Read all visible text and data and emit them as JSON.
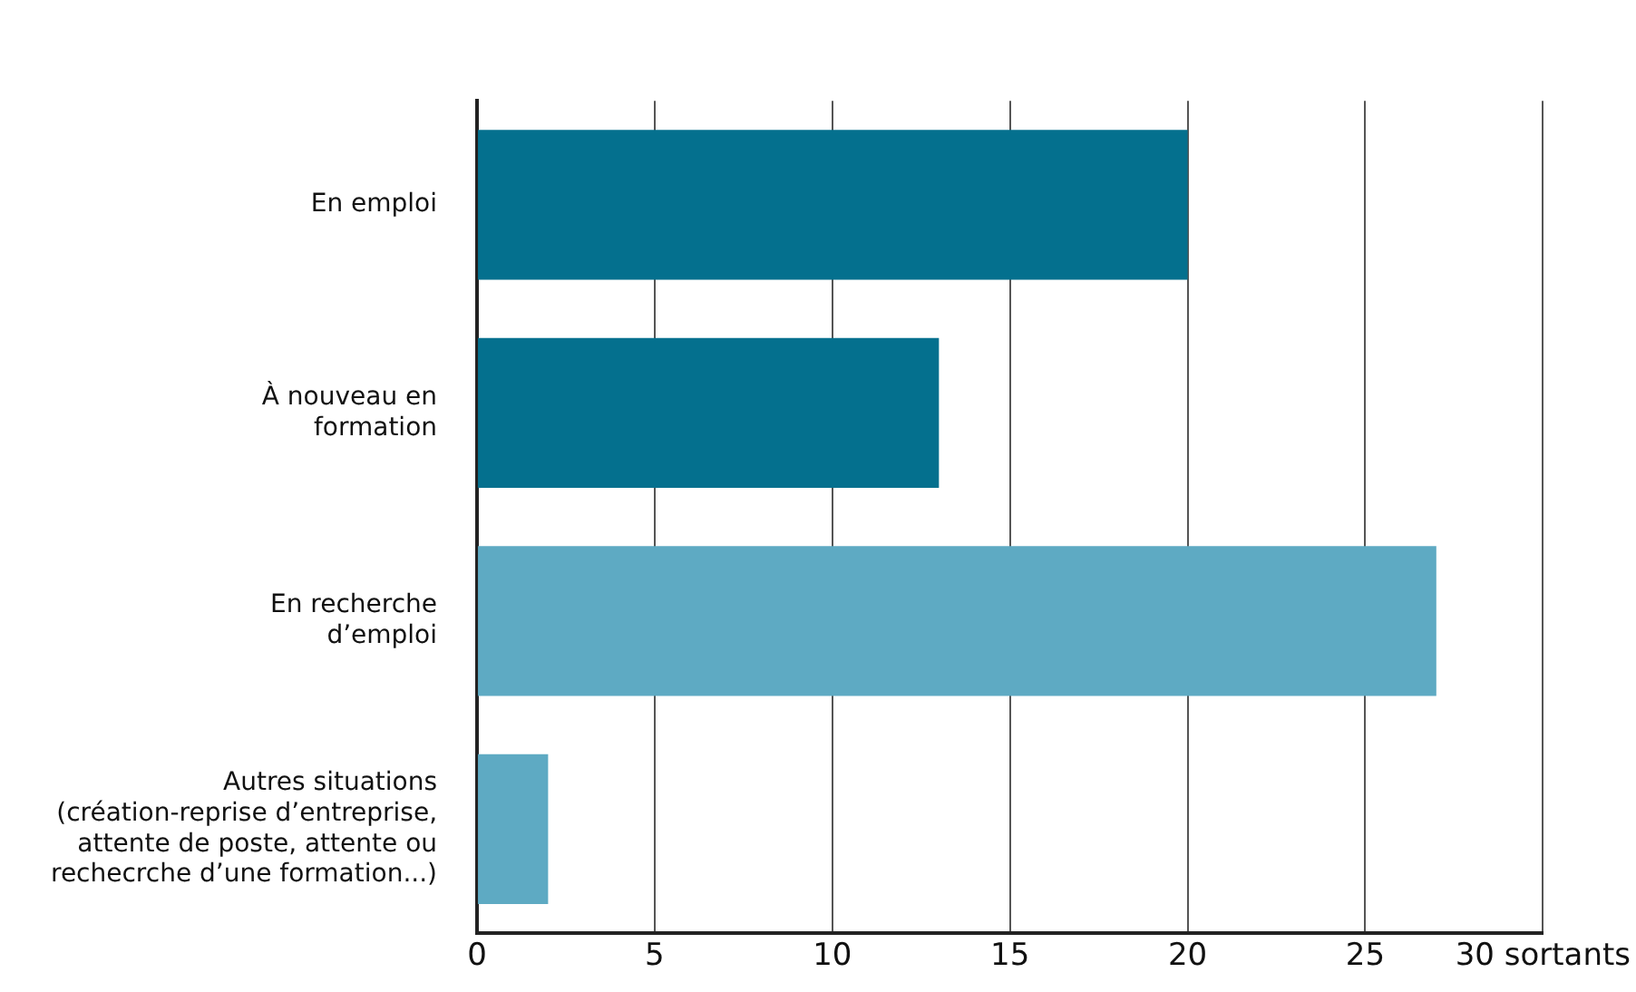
{
  "chart_data": {
    "type": "bar",
    "orientation": "horizontal",
    "categories": [
      "En emploi",
      "À nouveau en\nformation",
      "En recherche\nd’emploi",
      "Autres situations\n(création-reprise d’entreprise,\nattente de poste, attente ou\nrechecrche d’une formation...)"
    ],
    "values": [
      20,
      13,
      27,
      2
    ],
    "colors": [
      "#04708e",
      "#04708e",
      "#5eaac3",
      "#5eaac3"
    ],
    "xlim": [
      0,
      30
    ],
    "xticks": [
      0,
      5,
      10,
      15,
      20,
      25,
      {
        "value": 30,
        "label": "30 sortants"
      }
    ],
    "grid": "x"
  }
}
